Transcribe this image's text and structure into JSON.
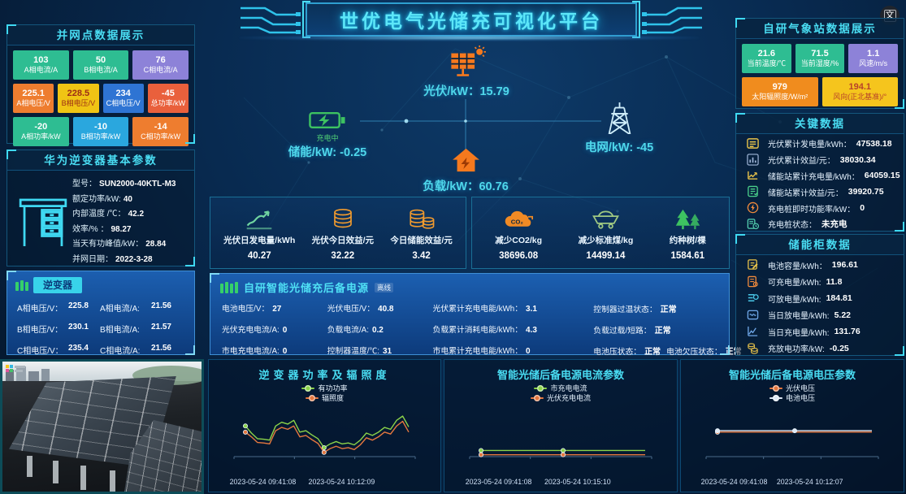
{
  "header": {
    "title": "世优电气光储充可视化平台",
    "translate_icon_label": "文"
  },
  "grid_point": {
    "title": "并网点数据展示",
    "tiles": [
      [
        {
          "value": "103",
          "label": "A相电流/A",
          "bg": "#2ebd92",
          "fg": "#ffffff"
        },
        {
          "value": "50",
          "label": "B相电流/A",
          "bg": "#2ebd92",
          "fg": "#ffffff"
        },
        {
          "value": "76",
          "label": "C相电流/A",
          "bg": "#8d82d8",
          "fg": "#ffffff"
        }
      ],
      [
        {
          "value": "225.1",
          "label": "A相电压/V",
          "bg": "#ee7d2f",
          "fg": "#ffffff"
        },
        {
          "value": "228.5",
          "label": "B相电压/V",
          "bg": "#f0c414",
          "fg": "#9c2d16"
        },
        {
          "value": "234",
          "label": "C相电压/V",
          "bg": "#2e74d3",
          "fg": "#ffffff"
        },
        {
          "value": "-45",
          "label": "总功率/kW",
          "bg": "#e9603c",
          "fg": "#ffffff"
        }
      ],
      [
        {
          "value": "-20",
          "label": "A相功率/kW",
          "bg": "#2ebd92",
          "fg": "#ffffff"
        },
        {
          "value": "-10",
          "label": "B相功率/kW",
          "bg": "#2aa7de",
          "fg": "#ffffff"
        },
        {
          "value": "-14",
          "label": "C相功率/kW",
          "bg": "#ee7d2f",
          "fg": "#ffffff"
        }
      ]
    ]
  },
  "huawei_inverter": {
    "title": "华为逆变器基本参数",
    "params": [
      {
        "label": "型号：",
        "value": "SUN2000-40KTL-M3"
      },
      {
        "label": "额定功率/kW:",
        "value": "40"
      },
      {
        "label": "内部温度 /℃：",
        "value": "42.2"
      },
      {
        "label": "效率/% ：",
        "value": "98.27"
      },
      {
        "label": "当天有功峰值/kW：",
        "value": "28.84"
      },
      {
        "label": "并网日期：",
        "value": "2022-3-28"
      }
    ]
  },
  "inverter": {
    "title": "逆变器",
    "cells": [
      {
        "label": "A相电压/V：",
        "value": "225.8"
      },
      {
        "label": "A相电流/A:",
        "value": "21.56"
      },
      {
        "label": "B相电压/V：",
        "value": "230.1"
      },
      {
        "label": "B相电流/A:",
        "value": "21.57"
      },
      {
        "label": "C相电压/V：",
        "value": "235.4"
      },
      {
        "label": "C相电流/A:",
        "value": "21.56"
      }
    ]
  },
  "flow": {
    "pv": {
      "icon": "solar-panel-icon",
      "label": "光伏/kW：",
      "value": "15.79"
    },
    "storage": {
      "icon": "battery-icon",
      "status": "充电中",
      "label": "储能/kW: ",
      "value": "-0.25"
    },
    "grid": {
      "icon": "power-tower-icon",
      "label": "电网/kW: ",
      "value": "-45"
    },
    "load": {
      "icon": "house-icon",
      "label": "负载/kW：",
      "value": "60.76"
    }
  },
  "daily_stats": {
    "items": [
      {
        "icon": "line-chart-icon",
        "icon_color": "#6fd3a0",
        "label": "光伏日发电量/kWh",
        "value": "40.27"
      },
      {
        "icon": "coins-icon",
        "icon_color": "#f09a2e",
        "label": "光伏今日效益/元",
        "value": "32.22"
      },
      {
        "icon": "coins-stack-icon",
        "icon_color": "#f09a2e",
        "label": "今日储能效益/元",
        "value": "3.42"
      }
    ]
  },
  "eco_stats": {
    "items": [
      {
        "icon": "co2-cloud-icon",
        "icon_color": "#f08a24",
        "label": "减少CO2/kg",
        "value": "38696.08"
      },
      {
        "icon": "coal-cart-icon",
        "icon_color": "#9fc882",
        "label": "减少标准煤/kg",
        "value": "14499.14"
      },
      {
        "icon": "trees-icon",
        "icon_color": "#3dc261",
        "label": "约种树/棵",
        "value": "1584.61"
      }
    ]
  },
  "backup_power": {
    "title": "自研智能光储充后备电源",
    "tag": "离线",
    "rows": [
      [
        {
          "label": "电池电压/V：",
          "value": "27"
        },
        {
          "label": "光伏电压/V：",
          "value": "40.8"
        },
        {
          "label": "光伏累计充电电能/kWh：",
          "value": "3.1"
        },
        {
          "label": "控制器过温状态：",
          "value": "正常"
        }
      ],
      [
        {
          "label": "光伏充电电流/A:",
          "value": "0"
        },
        {
          "label": "负载电流/A:",
          "value": "0.2"
        },
        {
          "label": "负载累计消耗电能/kWh：",
          "value": "4.3"
        },
        {
          "label": "负载过载/短路：",
          "value": "正常"
        }
      ],
      [
        {
          "label": "市电充电电流/A:",
          "value": "0"
        },
        {
          "label": "控制器温度/℃:",
          "value": "31"
        },
        {
          "label": "市电累计充电电能/kWh：",
          "value": "0"
        },
        {
          "label": "电池压状态：",
          "value": "正常",
          "label2": "电池欠压状态：",
          "value2": "正常"
        }
      ]
    ]
  },
  "weather": {
    "title": "自研气象站数据展示",
    "tiles": [
      [
        {
          "value": "21.6",
          "label": "当前温度/℃",
          "bg": "#2ebd92",
          "fg": "#ffffff"
        },
        {
          "value": "71.5",
          "label": "当前湿度/%",
          "bg": "#2ebd92",
          "fg": "#ffffff"
        },
        {
          "value": "1.1",
          "label": "风速/m/s",
          "bg": "#8d82d8",
          "fg": "#ffffff"
        }
      ],
      [
        {
          "value": "979",
          "label": "太阳辐照度/W/m²",
          "bg": "#f08c1e",
          "fg": "#ffffff"
        },
        {
          "value": "194.1",
          "label": "风向(正北基准)/°",
          "bg": "#f5c51d",
          "fg": "#b8422a"
        }
      ]
    ]
  },
  "key_data": {
    "title": "关键数据",
    "items": [
      {
        "icon": "meter-icon",
        "icon_color": "#e7c24a",
        "label": "光伏累计发电量/kWh：",
        "value": "47538.18"
      },
      {
        "icon": "bar-chart-icon",
        "icon_color": "#9fb6d8",
        "label": "光伏累计效益/元：",
        "value": "38030.34"
      },
      {
        "icon": "trend-icon",
        "icon_color": "#e7c24a",
        "label": "储能站累计充电量/kWh：",
        "value": "64059.15"
      },
      {
        "icon": "doc-check-icon",
        "icon_color": "#4ad08a",
        "label": "储能站累计效益/元：",
        "value": "39920.75"
      },
      {
        "icon": "lightning-circle-icon",
        "icon_color": "#f08a3c",
        "label": "充电桩即时功能率/kW：",
        "value": "0"
      },
      {
        "icon": "charger-status-icon",
        "icon_color": "#54d0b0",
        "label": "充电桩状态：",
        "value": "未充电"
      }
    ]
  },
  "storage_cabinet": {
    "title": "储能柜数据",
    "items": [
      {
        "icon": "doc-edit-icon",
        "icon_color": "#e7c24a",
        "label": "电池容量/kWh：",
        "value": "196.61"
      },
      {
        "icon": "doc-gear-icon",
        "icon_color": "#f08a3c",
        "label": "可充电量/kWh:",
        "value": "11.8"
      },
      {
        "icon": "list-gear-icon",
        "icon_color": "#49c7e8",
        "label": "可放电量/kWh:",
        "value": "184.81"
      },
      {
        "icon": "wave-box-icon",
        "icon_color": "#6fa7e8",
        "label": "当日放电量/kWh:",
        "value": "5.22"
      },
      {
        "icon": "line-chart-small-icon",
        "icon_color": "#6fa7e8",
        "label": "当日充电量/kWh:",
        "value": "131.76"
      },
      {
        "icon": "coins-small-icon",
        "icon_color": "#e7c24a",
        "label": "充放电功率/kW:",
        "value": "-0.25"
      }
    ]
  },
  "chart_data": [
    {
      "type": "line",
      "title": "逆变器功率及辐照度",
      "legend_position": "top",
      "grid": false,
      "ylim": [
        0,
        100
      ],
      "x_axis_labels": [
        "2023-05-24 09:41:08",
        "2023-05-24 10:12:09"
      ],
      "series": [
        {
          "name": "有功功率",
          "color": "#8bd34a",
          "marker_indices": [
            0,
            13
          ],
          "values": [
            65,
            50,
            38,
            37,
            35,
            65,
            73,
            69,
            77,
            52,
            55,
            46,
            38,
            19,
            27,
            32,
            27,
            29,
            25,
            35,
            50,
            45,
            52,
            62,
            58,
            77,
            86,
            63
          ]
        },
        {
          "name": "辐照度",
          "color": "#e4773f",
          "marker_indices": [
            0,
            13
          ],
          "values": [
            52,
            42,
            30,
            29,
            27,
            55,
            62,
            58,
            65,
            42,
            45,
            36,
            28,
            9,
            17,
            22,
            17,
            19,
            15,
            25,
            40,
            35,
            42,
            52,
            48,
            65,
            75,
            52
          ]
        }
      ]
    },
    {
      "type": "line",
      "title": "智能光储后备电源电流参数",
      "legend_position": "top",
      "grid": false,
      "ylim": [
        0,
        100
      ],
      "x_axis_labels": [
        "2023-05-24 09:41:08",
        "2023-05-24 10:15:10"
      ],
      "series": [
        {
          "name": "市充电电流",
          "color": "#8bd34a",
          "marker_indices": [
            0,
            1
          ],
          "values": [
            13,
            13,
            13
          ]
        },
        {
          "name": "光伏充电电流",
          "color": "#e4773f",
          "marker_indices": [
            0,
            1
          ],
          "values": [
            4,
            4,
            4
          ]
        }
      ]
    },
    {
      "type": "line",
      "title": "智能光储后备电源电压参数",
      "legend_position": "top",
      "grid": false,
      "ylim": [
        0,
        100
      ],
      "x_axis_labels": [
        "2023-05-24 09:41:08",
        "2023-05-24 10:12:07"
      ],
      "series": [
        {
          "name": "光伏电压",
          "color": "#e4773f",
          "marker_indices": [
            0
          ],
          "values": [
            52,
            52,
            52
          ]
        },
        {
          "name": "电池电压",
          "color": "#dfe9f5",
          "marker_indices": [
            0,
            1
          ],
          "values": [
            55,
            55,
            55
          ]
        }
      ]
    }
  ]
}
